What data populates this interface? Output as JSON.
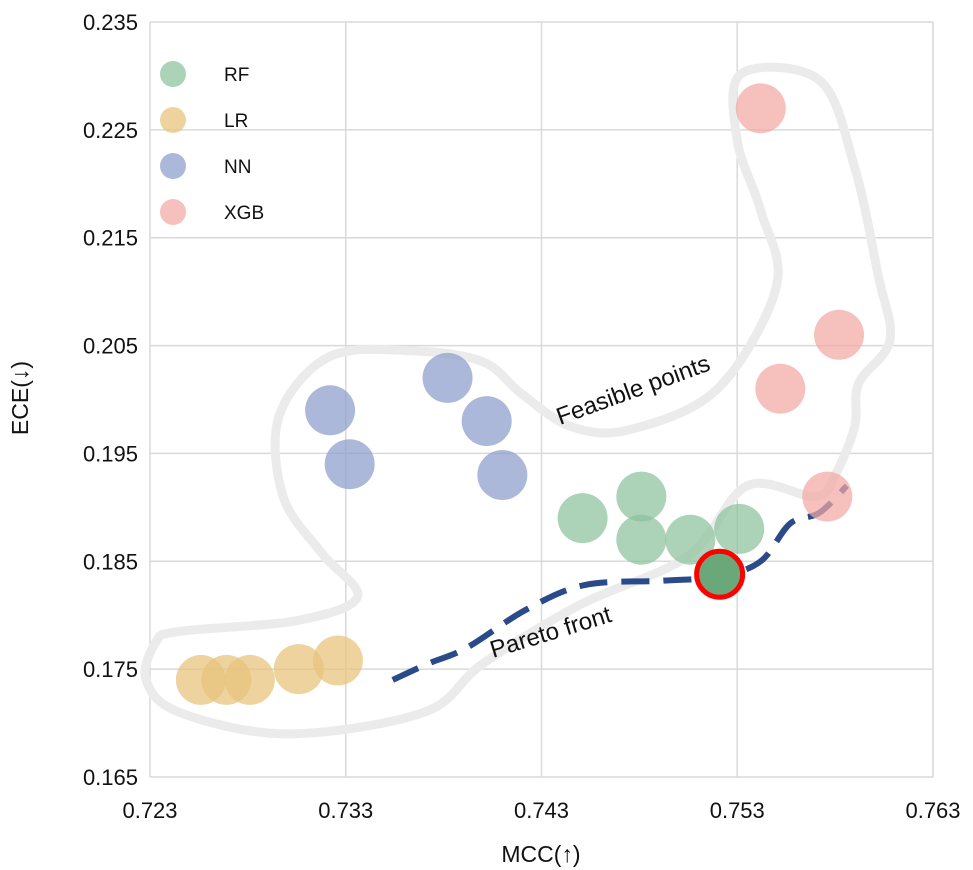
{
  "chart_data": {
    "type": "scatter",
    "xlabel": "MCC(↑)",
    "ylabel": "ECE(↓)",
    "xlim": [
      0.723,
      0.763
    ],
    "ylim": [
      0.165,
      0.235
    ],
    "xticks": [
      "0.723",
      "0.733",
      "0.743",
      "0.753",
      "0.763"
    ],
    "yticks": [
      "0.165",
      "0.175",
      "0.185",
      "0.195",
      "0.205",
      "0.215",
      "0.225",
      "0.235"
    ],
    "grid": true,
    "legend_position": "top-left",
    "series": [
      {
        "name": "RF",
        "color": "#8cc09b",
        "points": [
          [
            0.7451,
            0.189
          ],
          [
            0.7481,
            0.191
          ],
          [
            0.7481,
            0.187
          ],
          [
            0.7506,
            0.187
          ],
          [
            0.7531,
            0.188
          ],
          [
            0.7521,
            0.1838
          ]
        ]
      },
      {
        "name": "LR",
        "color": "#e8c27a",
        "points": [
          [
            0.7256,
            0.174
          ],
          [
            0.7269,
            0.174
          ],
          [
            0.7281,
            0.174
          ],
          [
            0.7306,
            0.175
          ],
          [
            0.7326,
            0.1758
          ]
        ]
      },
      {
        "name": "NN",
        "color": "#8c9dca",
        "points": [
          [
            0.7322,
            0.199
          ],
          [
            0.7332,
            0.194
          ],
          [
            0.7382,
            0.202
          ],
          [
            0.7402,
            0.198
          ],
          [
            0.741,
            0.193
          ]
        ]
      },
      {
        "name": "XGB",
        "color": "#f2a9a3",
        "points": [
          [
            0.7542,
            0.227
          ],
          [
            0.7552,
            0.201
          ],
          [
            0.7582,
            0.206
          ],
          [
            0.7576,
            0.191
          ]
        ]
      }
    ],
    "highlighted_point": {
      "series": "RF",
      "x": 0.7521,
      "y": 0.1838,
      "outline_color": "#ff0000"
    },
    "annotations": {
      "feasible_label": "Feasible points",
      "pareto_label": "Pareto front"
    },
    "pareto_front": [
      [
        0.7354,
        0.174
      ],
      [
        0.7372,
        0.1755
      ],
      [
        0.7392,
        0.177
      ],
      [
        0.7422,
        0.1805
      ],
      [
        0.7452,
        0.1828
      ],
      [
        0.7492,
        0.1832
      ],
      [
        0.7521,
        0.1836
      ],
      [
        0.7542,
        0.185
      ],
      [
        0.7557,
        0.1885
      ],
      [
        0.7572,
        0.1895
      ],
      [
        0.7586,
        0.192
      ]
    ],
    "feasible_region": [
      [
        0.7245,
        0.1785
      ],
      [
        0.7305,
        0.1795
      ],
      [
        0.7336,
        0.1817
      ],
      [
        0.7318,
        0.1857
      ],
      [
        0.7298,
        0.191
      ],
      [
        0.7296,
        0.1985
      ],
      [
        0.7322,
        0.204
      ],
      [
        0.7365,
        0.2045
      ],
      [
        0.74,
        0.2035
      ],
      [
        0.742,
        0.2005
      ],
      [
        0.7445,
        0.1975
      ],
      [
        0.7475,
        0.1972
      ],
      [
        0.752,
        0.201
      ],
      [
        0.755,
        0.2105
      ],
      [
        0.7542,
        0.2175
      ],
      [
        0.753,
        0.224
      ],
      [
        0.7532,
        0.2302
      ],
      [
        0.7572,
        0.2296
      ],
      [
        0.759,
        0.2215
      ],
      [
        0.7602,
        0.2115
      ],
      [
        0.7608,
        0.2055
      ],
      [
        0.7592,
        0.2015
      ],
      [
        0.759,
        0.1975
      ],
      [
        0.758,
        0.193
      ],
      [
        0.757,
        0.191
      ],
      [
        0.7535,
        0.192
      ],
      [
        0.7505,
        0.1855
      ],
      [
        0.745,
        0.181
      ],
      [
        0.74,
        0.1755
      ],
      [
        0.737,
        0.171
      ],
      [
        0.73,
        0.169
      ],
      [
        0.7245,
        0.171
      ],
      [
        0.7228,
        0.174
      ],
      [
        0.7233,
        0.1775
      ]
    ]
  }
}
